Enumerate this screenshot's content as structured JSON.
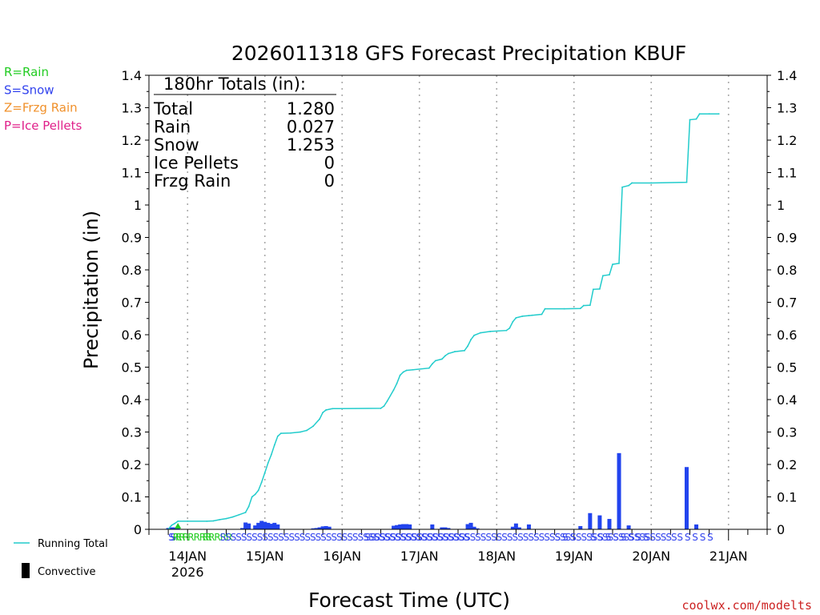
{
  "chart_data": {
    "type": "bar",
    "title": "2026011318 GFS Forecast Precipitation KBUF",
    "ylabel": "Precipitation (in)",
    "xlabel": "Forecast Time (UTC)",
    "ylim": [
      0,
      1.4
    ],
    "yticks": [
      "0",
      "0.1",
      "0.2",
      "0.3",
      "0.4",
      "0.5",
      "0.6",
      "0.7",
      "0.8",
      "0.9",
      "1",
      "1.1",
      "1.2",
      "1.3",
      "1.4"
    ],
    "xlim_hours": [
      -6,
      186
    ],
    "day_ticks": [
      {
        "h": 6,
        "label": "14JAN",
        "sub": "2026"
      },
      {
        "h": 30,
        "label": "15JAN",
        "sub": ""
      },
      {
        "h": 54,
        "label": "16JAN",
        "sub": ""
      },
      {
        "h": 78,
        "label": "17JAN",
        "sub": ""
      },
      {
        "h": 102,
        "label": "18JAN",
        "sub": ""
      },
      {
        "h": 126,
        "label": "19JAN",
        "sub": ""
      },
      {
        "h": 150,
        "label": "20JAN",
        "sub": ""
      },
      {
        "h": 174,
        "label": "21JAN",
        "sub": ""
      }
    ],
    "legend_types": [
      {
        "label": "R=Rain",
        "color": "#22cc22"
      },
      {
        "label": "S=Snow",
        "color": "#3344ee"
      },
      {
        "label": "Z=Frzg Rain",
        "color": "#f0902a"
      },
      {
        "label": "P=Ice Pellets",
        "color": "#e0208a"
      }
    ],
    "legend_lines": [
      {
        "label": "Running Total",
        "kind": "line",
        "color": "#22cccc"
      },
      {
        "label": "Convective",
        "kind": "bar",
        "color": "#000000"
      }
    ],
    "totals": {
      "header": "180hr Totals (in):",
      "rows": [
        {
          "label": "Total",
          "value": "1.280"
        },
        {
          "label": "Rain",
          "value": "0.027"
        },
        {
          "label": "Snow",
          "value": "1.253"
        },
        {
          "label": "Ice Pellets",
          "value": "0"
        },
        {
          "label": "Frzg Rain",
          "value": "0"
        }
      ]
    },
    "series": [
      {
        "name": "Running Total",
        "color": "#22cccc",
        "points": [
          [
            0,
            0
          ],
          [
            0.5,
            0.006
          ],
          [
            1,
            0.012
          ],
          [
            2,
            0.018
          ],
          [
            3,
            0.025
          ],
          [
            6,
            0.025
          ],
          [
            12,
            0.025
          ],
          [
            14,
            0.026
          ],
          [
            16,
            0.03
          ],
          [
            18,
            0.033
          ],
          [
            20,
            0.038
          ],
          [
            22,
            0.045
          ],
          [
            24,
            0.052
          ],
          [
            25,
            0.07
          ],
          [
            26,
            0.1
          ],
          [
            27,
            0.108
          ],
          [
            28,
            0.12
          ],
          [
            29,
            0.145
          ],
          [
            30,
            0.175
          ],
          [
            31,
            0.205
          ],
          [
            32,
            0.23
          ],
          [
            33,
            0.26
          ],
          [
            34,
            0.287
          ],
          [
            35,
            0.296
          ],
          [
            38,
            0.297
          ],
          [
            41,
            0.3
          ],
          [
            43,
            0.305
          ],
          [
            45,
            0.318
          ],
          [
            47,
            0.34
          ],
          [
            48,
            0.36
          ],
          [
            49,
            0.368
          ],
          [
            51,
            0.372
          ],
          [
            54,
            0.372
          ],
          [
            66,
            0.373
          ],
          [
            67,
            0.38
          ],
          [
            68,
            0.395
          ],
          [
            70,
            0.43
          ],
          [
            71,
            0.45
          ],
          [
            72,
            0.475
          ],
          [
            73,
            0.485
          ],
          [
            74,
            0.49
          ],
          [
            76,
            0.492
          ],
          [
            81,
            0.497
          ],
          [
            82,
            0.51
          ],
          [
            83,
            0.52
          ],
          [
            85,
            0.525
          ],
          [
            86,
            0.535
          ],
          [
            87,
            0.542
          ],
          [
            89,
            0.548
          ],
          [
            92,
            0.551
          ],
          [
            93,
            0.565
          ],
          [
            94,
            0.585
          ],
          [
            95,
            0.598
          ],
          [
            97,
            0.606
          ],
          [
            100,
            0.61
          ],
          [
            105,
            0.613
          ],
          [
            106,
            0.62
          ],
          [
            107,
            0.64
          ],
          [
            108,
            0.652
          ],
          [
            110,
            0.657
          ],
          [
            112,
            0.659
          ],
          [
            113,
            0.66
          ],
          [
            116,
            0.663
          ],
          [
            117,
            0.68
          ],
          [
            123,
            0.68
          ],
          [
            128,
            0.681
          ],
          [
            129,
            0.69
          ],
          [
            131,
            0.691
          ],
          [
            132,
            0.74
          ],
          [
            134,
            0.741
          ],
          [
            135,
            0.782
          ],
          [
            137,
            0.785
          ],
          [
            138,
            0.817
          ],
          [
            140,
            0.82
          ],
          [
            141,
            1.055
          ],
          [
            143,
            1.06
          ],
          [
            144,
            1.068
          ],
          [
            150,
            1.068
          ],
          [
            161,
            1.07
          ],
          [
            162,
            1.263
          ],
          [
            164,
            1.265
          ],
          [
            165,
            1.281
          ],
          [
            168,
            1.281
          ],
          [
            171,
            1.281
          ]
        ]
      },
      {
        "name": "Period Precipitation",
        "color": "#2244ee",
        "points": [
          [
            0,
            0.004
          ],
          [
            1,
            0.006
          ],
          [
            2,
            0.006
          ],
          [
            3,
            0.003
          ],
          [
            23,
            0.004
          ],
          [
            24,
            0.021
          ],
          [
            25,
            0.018
          ],
          [
            27,
            0.012
          ],
          [
            28,
            0.02
          ],
          [
            29,
            0.026
          ],
          [
            30,
            0.023
          ],
          [
            31,
            0.02
          ],
          [
            32,
            0.017
          ],
          [
            33,
            0.02
          ],
          [
            34,
            0.015
          ],
          [
            45,
            0.003
          ],
          [
            46,
            0.004
          ],
          [
            47,
            0.006
          ],
          [
            48,
            0.009
          ],
          [
            49,
            0.01
          ],
          [
            50,
            0.008
          ],
          [
            70,
            0.011
          ],
          [
            71,
            0.013
          ],
          [
            72,
            0.015
          ],
          [
            73,
            0.016
          ],
          [
            74,
            0.016
          ],
          [
            75,
            0.015
          ],
          [
            82,
            0.015
          ],
          [
            85,
            0.006
          ],
          [
            86,
            0.006
          ],
          [
            87,
            0.004
          ],
          [
            93,
            0.016
          ],
          [
            94,
            0.02
          ],
          [
            95,
            0.008
          ],
          [
            96,
            0.003
          ],
          [
            107,
            0.008
          ],
          [
            108,
            0.018
          ],
          [
            109,
            0.006
          ],
          [
            112,
            0.015
          ],
          [
            128,
            0.01
          ],
          [
            131,
            0.05
          ],
          [
            134,
            0.043
          ],
          [
            137,
            0.032
          ],
          [
            140,
            0.235
          ],
          [
            143,
            0.012
          ],
          [
            161,
            0.192
          ],
          [
            164,
            0.015
          ]
        ]
      }
    ],
    "type_row": [
      {
        "h": 0,
        "text": "S",
        "color": "#3344ee"
      },
      {
        "h": 0.6,
        "text": "S",
        "color": "#3344ee"
      },
      {
        "h": 1.4,
        "text": "R",
        "color": "#22cc22"
      },
      {
        "h": 2.2,
        "text": "R",
        "color": "#22cc22"
      },
      {
        "h": 3.2,
        "text": "R",
        "color": "#22cc22"
      },
      {
        "h": 4.4,
        "text": "R",
        "color": "#22cc22"
      },
      {
        "h": 6,
        "text": "RRRR",
        "color": "#22cc22"
      },
      {
        "h": 10.6,
        "text": "RRRRR",
        "color": "#22cc22"
      },
      {
        "h": 16,
        "text": "SSSSSSSSSSSSSSSSSSSSSSSSSSSSSSSSSSSSSSSSSSSSSSS",
        "color": "#3344ee"
      },
      {
        "h": 61,
        "text": "SS",
        "color": "#3344ee"
      },
      {
        "h": 64,
        "text": "SSSSSSSSSSSSSSSSSSSSSSSSSSSSSSSSSSSSSSSSSSSSSSSSSSSSSSSSS",
        "color": "#3344ee"
      },
      {
        "h": 120,
        "text": "S S S",
        "color": "#3344ee"
      },
      {
        "h": 131,
        "text": "S S S S S S S S",
        "color": "#3344ee"
      },
      {
        "h": 158,
        "text": "S S S S S",
        "color": "#3344ee"
      }
    ],
    "watermark": "coolwx.com/modelts"
  }
}
